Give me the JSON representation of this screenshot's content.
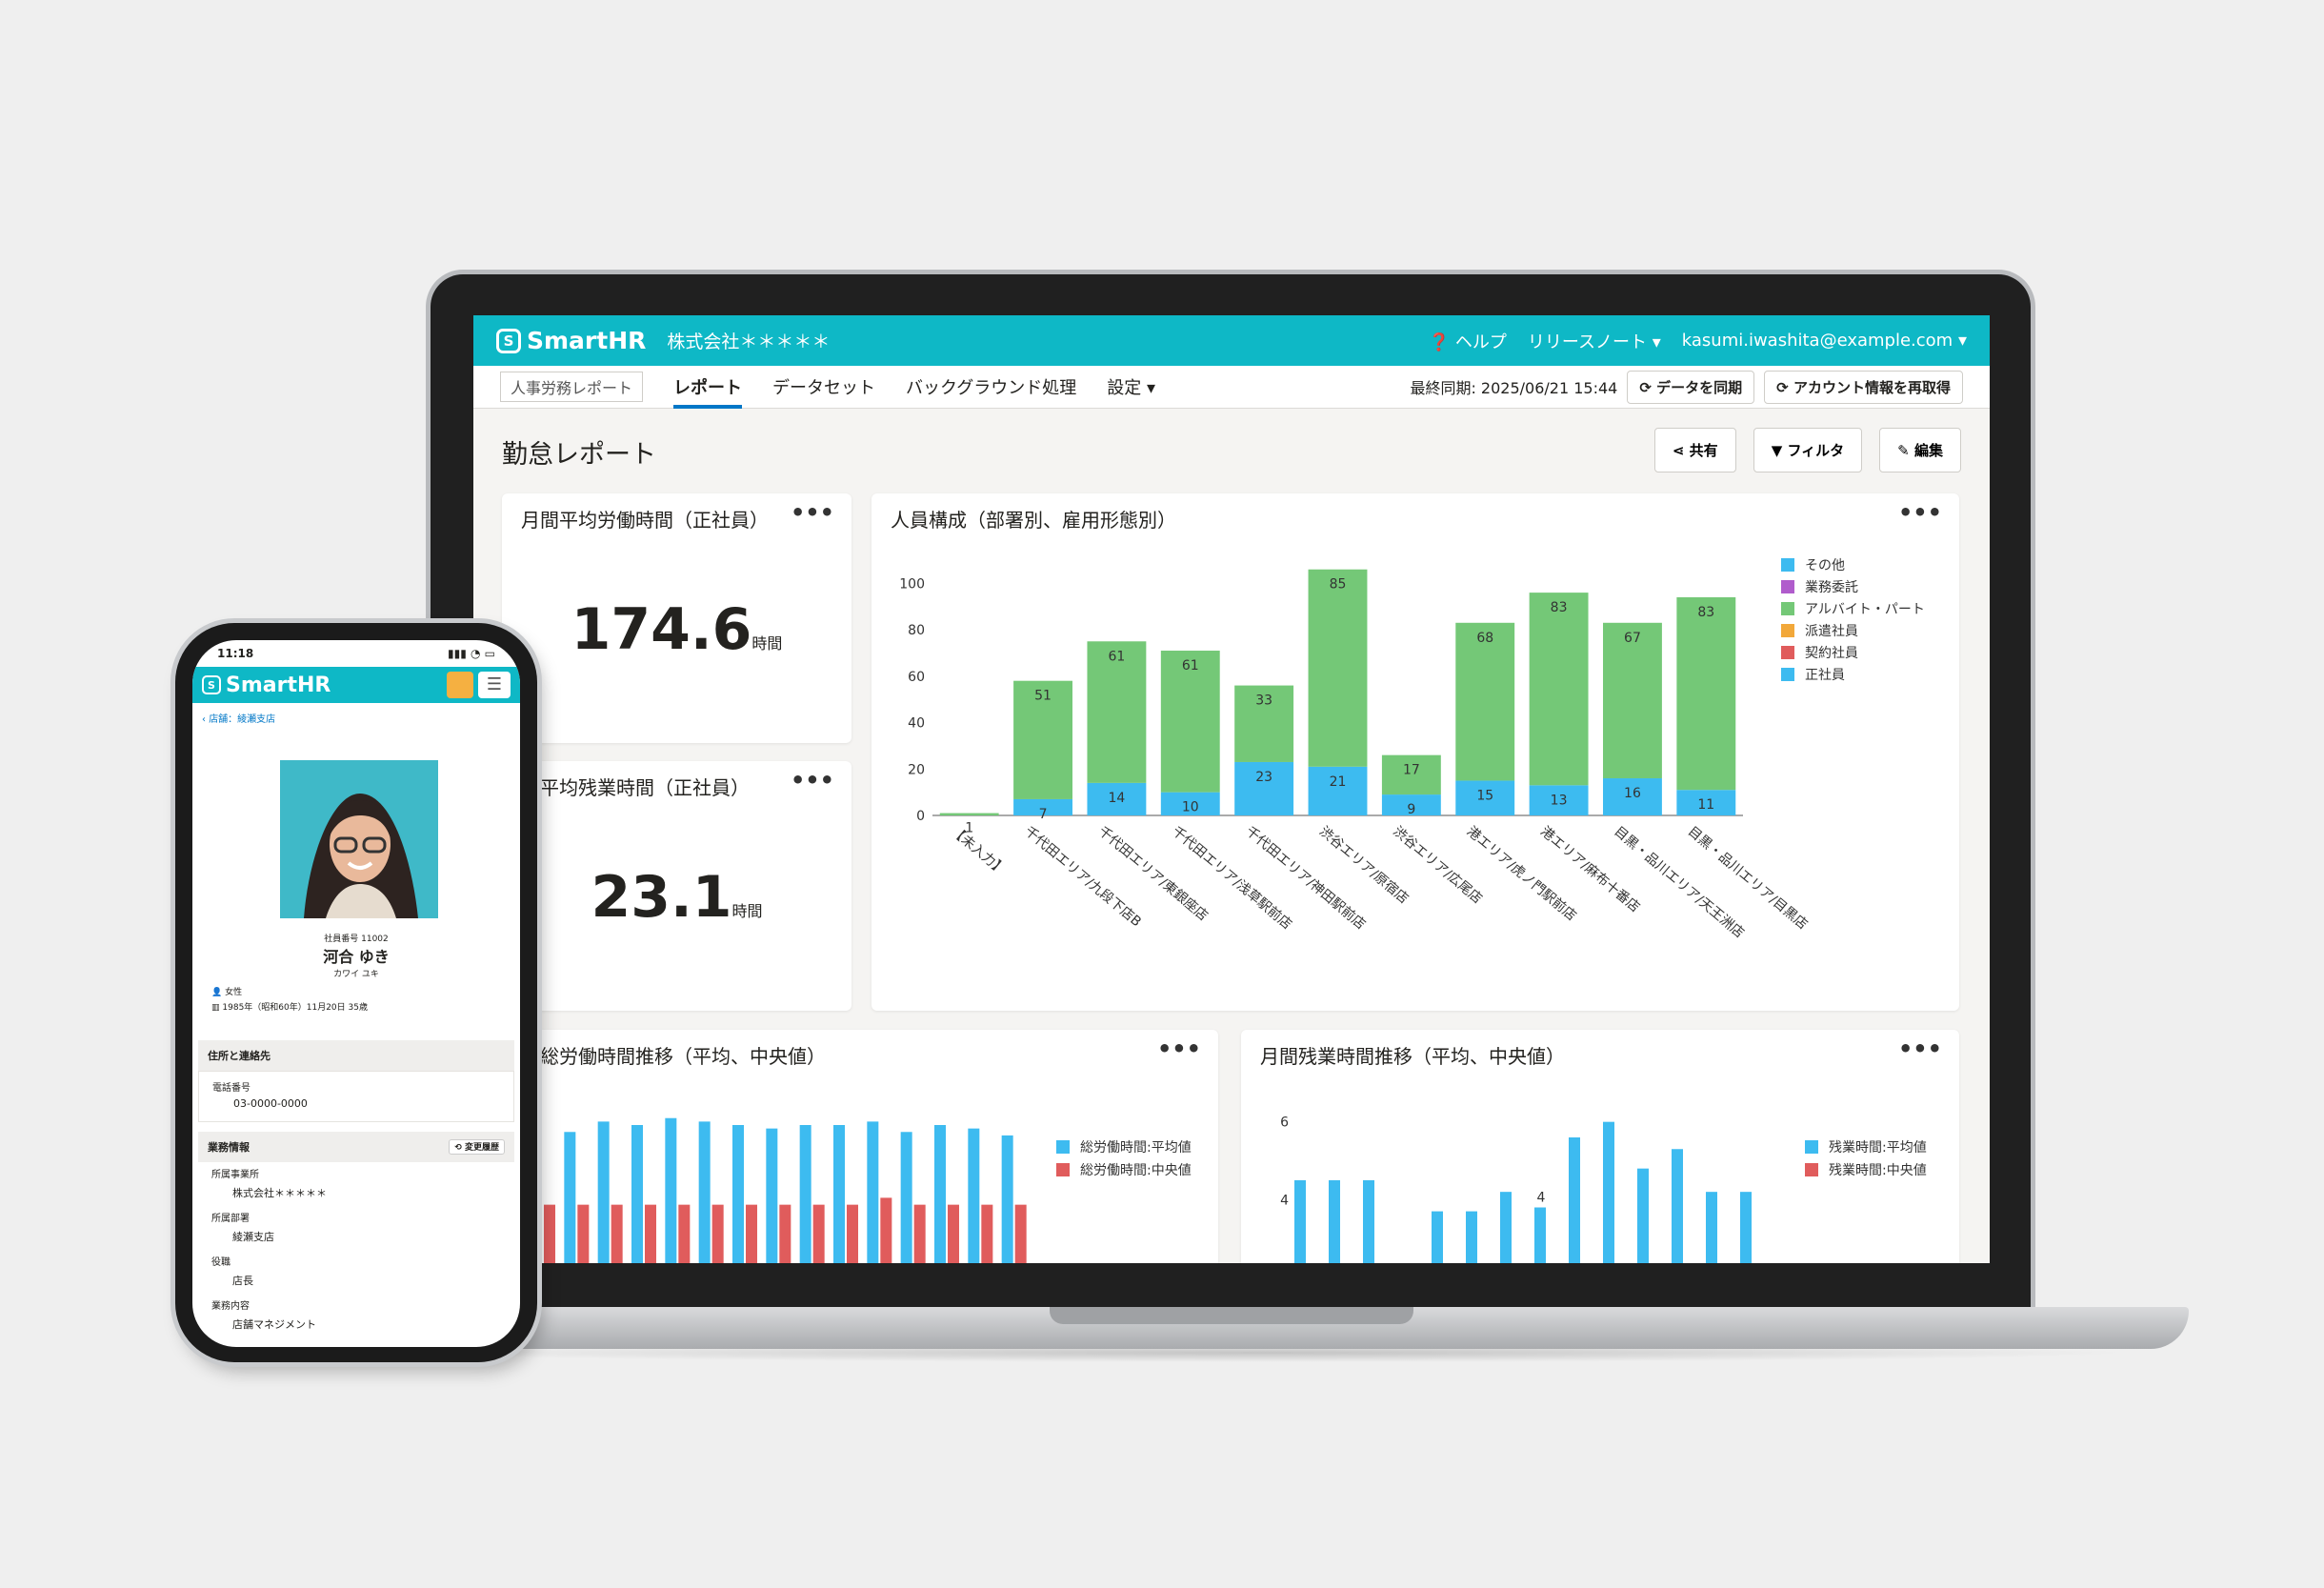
{
  "app": {
    "logo": "SmartHR",
    "company": "株式会社＊＊＊＊＊",
    "help": "ヘルプ",
    "release": "リリースノート",
    "user": "kasumi.iwashita@example.com"
  },
  "nav": {
    "chip": "人事労務レポート",
    "tabs": [
      "レポート",
      "データセット",
      "バックグラウンド処理",
      "設定"
    ],
    "sync_time": "最終同期: 2025/06/21 15:44",
    "sync_btn": "データを同期",
    "refetch_btn": "アカウント情報を再取得"
  },
  "page": {
    "title": "勤怠レポート",
    "share": "共有",
    "filter": "フィルタ",
    "edit": "編集"
  },
  "cards": {
    "kpi1_title": "月間平均労働時間（正社員）",
    "kpi1_value": "174.6",
    "kpi1_unit": "時間",
    "kpi2_title": "間平均残業時間（正社員）",
    "kpi2_value": "23.1",
    "kpi2_unit": "時間",
    "chart1_title": "人員構成（部署別、雇用形態別）",
    "chart2_title": "間総労働時間推移（平均、中央値）",
    "chart3_title": "月間残業時間推移（平均、中央値）",
    "dots": "•••"
  },
  "chart_data": [
    {
      "type": "bar",
      "stacked": true,
      "title": "人員構成（部署別、雇用形態別）",
      "categories": [
        "【未入力】",
        "千代田エリア/九段下店B",
        "千代田エリア/東銀座店",
        "千代田エリア/浅草駅前店",
        "千代田エリア/神田駅前店",
        "渋谷エリア/原宿店",
        "渋谷エリア/広尾店",
        "港エリア/虎ノ門駅前店",
        "港エリア/麻布十番店",
        "目黒・品川エリア/天王洲店",
        "目黒・品川エリア/目黒店"
      ],
      "series": [
        {
          "name": "正社員",
          "color": "#3dbbf0",
          "values": [
            0,
            7,
            14,
            10,
            23,
            21,
            9,
            15,
            13,
            16,
            11
          ]
        },
        {
          "name": "アルバイト・パート",
          "color": "#74c877",
          "values": [
            1,
            51,
            61,
            61,
            33,
            85,
            17,
            68,
            83,
            67,
            83
          ]
        }
      ],
      "legend": [
        "その他",
        "業務委託",
        "アルバイト・パート",
        "派遣社員",
        "契約社員",
        "正社員"
      ],
      "legend_colors": [
        "#3dbbf0",
        "#b05ccc",
        "#74c877",
        "#f2a83a",
        "#e05c5c",
        "#3dbbf0"
      ],
      "yticks": [
        0,
        20,
        40,
        60,
        80,
        100
      ],
      "ylim": [
        0,
        110
      ]
    },
    {
      "type": "bar",
      "title": "間総労働時間推移（平均、中央値）",
      "series": [
        {
          "name": "総労働時間:平均値",
          "color": "#3dbbf0",
          "values": [
            88,
            87,
            90,
            89,
            91,
            90,
            89,
            88,
            89,
            89,
            90,
            87,
            89,
            88,
            86
          ]
        },
        {
          "name": "総労働時間:中央値",
          "color": "#e05c5c",
          "values": [
            66,
            66,
            66,
            66,
            66,
            66,
            66,
            66,
            66,
            66,
            68,
            66,
            66,
            66,
            66
          ]
        }
      ],
      "yticks": [
        60,
        80
      ],
      "ylim": [
        45,
        100
      ]
    },
    {
      "type": "bar",
      "title": "月間残業時間推移（平均、中央値）",
      "series": [
        {
          "name": "残業時間:平均値",
          "color": "#3dbbf0",
          "values": [
            4.5,
            4.5,
            4.5,
            2.2,
            3.7,
            3.7,
            4.2,
            3.8,
            5.6,
            6.0,
            4.8,
            5.3,
            4.2,
            4.2
          ],
          "labels": [
            "",
            "",
            "",
            "",
            "",
            "",
            "",
            "4",
            "",
            "",
            "",
            "",
            "",
            ""
          ]
        },
        {
          "name": "残業時間:中央値",
          "color": "#e05c5c",
          "values": []
        }
      ],
      "yticks": [
        4,
        6
      ],
      "ylim": [
        2,
        6.8
      ]
    }
  ],
  "phone": {
    "time": "11:18",
    "logo": "SmartHR",
    "back": "店舗：綾瀬支店",
    "emp_no": "社員番号 11002",
    "name": "河合 ゆき",
    "kana": "カワイ ユキ",
    "gender": "女性",
    "birth": "1985年（昭和60年）11月20日 35歳",
    "sec1": "住所と連絡先",
    "phone_label": "電話番号",
    "phone_val": "03-0000-0000",
    "sec2": "業務情報",
    "history": "変更履歴",
    "f1": "所属事業所",
    "v1": "株式会社＊＊＊＊＊",
    "f2": "所属部署",
    "v2": "綾瀬支店",
    "f3": "役職",
    "v3": "店長",
    "f4": "業務内容",
    "v4": "店舗マネジメント"
  }
}
